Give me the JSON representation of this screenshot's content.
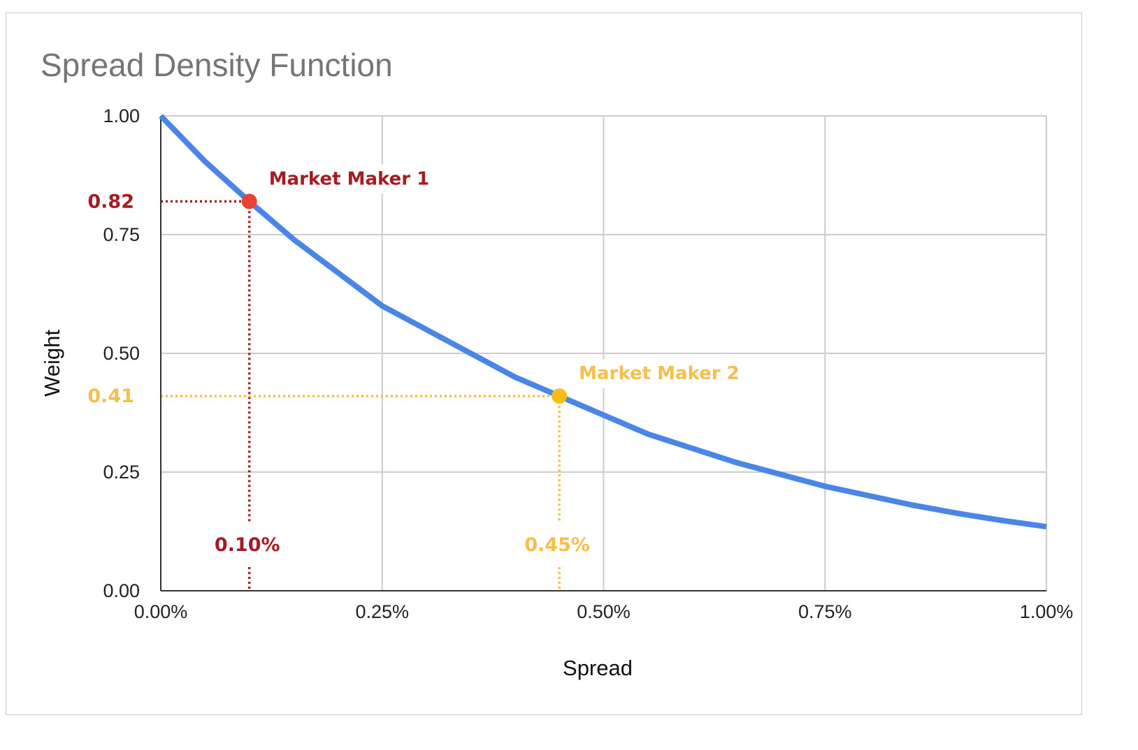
{
  "chart_data": {
    "type": "line",
    "title": "Spread Density Function",
    "xlabel": "Spread",
    "ylabel": "Weight",
    "xlim": [
      0,
      1.0
    ],
    "ylim": [
      0,
      1.0
    ],
    "x_unit": "%",
    "x_ticks": [
      "0.00%",
      "0.25%",
      "0.50%",
      "0.75%",
      "1.00%"
    ],
    "y_ticks": [
      "0.00",
      "0.25",
      "0.50",
      "0.75",
      "1.00"
    ],
    "grid": true,
    "series": [
      {
        "color": "#4A86E8",
        "x": [
          0.0,
          0.05,
          0.1,
          0.15,
          0.2,
          0.25,
          0.3,
          0.35,
          0.4,
          0.45,
          0.5,
          0.55,
          0.6,
          0.65,
          0.7,
          0.75,
          0.8,
          0.85,
          0.9,
          0.95,
          1.0
        ],
        "y": [
          1.0,
          0.904,
          0.82,
          0.74,
          0.67,
          0.6,
          0.55,
          0.5,
          0.45,
          0.41,
          0.37,
          0.33,
          0.3,
          0.27,
          0.245,
          0.22,
          0.2,
          0.18,
          0.163,
          0.148,
          0.135
        ]
      }
    ],
    "annotations": [
      {
        "label": "Market Maker 1",
        "x": 0.1,
        "y": 0.82,
        "x_label": "0.10%",
        "y_label": "0.82",
        "color": "#A61C23",
        "dot_color": "#EA4335"
      },
      {
        "label": "Market Maker 2",
        "x": 0.45,
        "y": 0.41,
        "x_label": "0.45%",
        "y_label": "0.41",
        "color": "#F6BE4B",
        "dot_color": "#F9BB15"
      }
    ]
  }
}
